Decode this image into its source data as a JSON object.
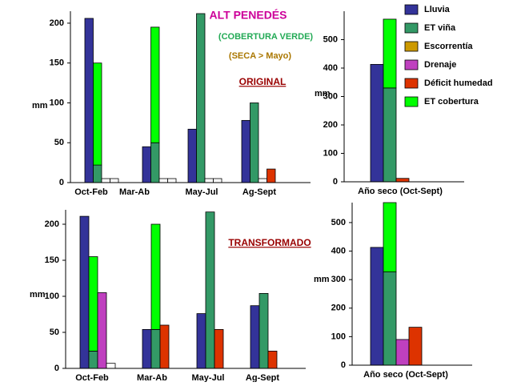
{
  "title": "ALT  PENEDÉS",
  "subtitle": "(COBERTURA VERDE)",
  "note": "(SECA > Mayo)",
  "chart_data": [
    {
      "type": "bar",
      "annotation": "ORIGINAL",
      "y_label": "mm",
      "categories": [
        "Oct-Feb",
        "Mar-Ab",
        "May-Jul",
        "Ag-Sept"
      ],
      "ylim": [
        0,
        215
      ],
      "yticks": [
        0,
        50,
        100,
        150,
        200
      ],
      "series": [
        {
          "name": "Lluvia",
          "color": "#333399",
          "values": [
            206,
            45,
            67,
            78
          ]
        },
        {
          "name": "ET viña",
          "color": "#339966",
          "values": [
            22,
            50,
            212,
            100
          ]
        },
        {
          "name": "ET cobertura",
          "color": "#00ff00",
          "stack": true,
          "values": [
            128,
            145,
            null,
            null
          ]
        },
        {
          "name": "Escorrentía",
          "color": "#ffffff",
          "values": [
            5,
            5,
            5,
            null
          ]
        },
        {
          "name": "Drenaje",
          "color": "#ffffff",
          "values": [
            5,
            5,
            5,
            5
          ]
        },
        {
          "name": "Déficit humedad",
          "color": "#dd3300",
          "values": [
            null,
            null,
            null,
            17
          ]
        }
      ]
    },
    {
      "type": "bar",
      "y_label": "mm",
      "legend": "outside-right",
      "categories": [
        "Año seco (Oct-Sept)"
      ],
      "ylim": [
        0,
        600
      ],
      "yticks": [
        0,
        100,
        200,
        300,
        400,
        500
      ],
      "series": [
        {
          "name": "Lluvia",
          "color": "#333399",
          "values": [
            413
          ]
        },
        {
          "name": "ET viña",
          "color": "#339966",
          "values": [
            330
          ]
        },
        {
          "name": "Escorrentía",
          "color": "#cc9900",
          "values": [
            null
          ]
        },
        {
          "name": "Drenaje",
          "color": "#bf40bf",
          "values": [
            null
          ]
        },
        {
          "name": "Déficit humedad",
          "color": "#dd3300",
          "values": [
            12
          ]
        },
        {
          "name": "ET cobertura",
          "color": "#00ff00",
          "stack_on": 1,
          "values": [
            242
          ]
        }
      ]
    },
    {
      "type": "bar",
      "annotation": "TRANSFORMADO",
      "y_label": "mm",
      "categories": [
        "Oct-Feb",
        "Mar-Ab",
        "May-Jul",
        "Ag-Sept"
      ],
      "ylim": [
        0,
        220
      ],
      "yticks": [
        0,
        50,
        100,
        150,
        200
      ],
      "series": [
        {
          "name": "Lluvia",
          "color": "#333399",
          "values": [
            211,
            54,
            76,
            87
          ]
        },
        {
          "name": "ET viña",
          "color": "#339966",
          "values": [
            24,
            54,
            217,
            104
          ]
        },
        {
          "name": "ET cobertura",
          "color": "#00ff00",
          "stack": true,
          "values": [
            131,
            146,
            null,
            null
          ]
        },
        {
          "name": "Drenaje",
          "color": "#bf40bf",
          "values": [
            105,
            null,
            null,
            null
          ]
        },
        {
          "name": "Escorrentía",
          "color": "#ffffff",
          "values": [
            7,
            null,
            null,
            null
          ]
        },
        {
          "name": "Déficit humedad",
          "color": "#dd3300",
          "values": [
            null,
            60,
            54,
            24
          ]
        }
      ]
    },
    {
      "type": "bar",
      "y_label": "mm",
      "categories": [
        "Año seco (Oct-Sept)"
      ],
      "ylim": [
        0,
        570
      ],
      "yticks": [
        0,
        100,
        200,
        300,
        400,
        500
      ],
      "series": [
        {
          "name": "Lluvia",
          "color": "#333399",
          "values": [
            413
          ]
        },
        {
          "name": "ET viña",
          "color": "#339966",
          "values": [
            327
          ]
        },
        {
          "name": "ET cobertura",
          "color": "#00ff00",
          "stack": true,
          "values": [
            243
          ]
        },
        {
          "name": "Drenaje",
          "color": "#bf40bf",
          "values": [
            90
          ]
        },
        {
          "name": "Déficit humedad",
          "color": "#dd3300",
          "values": [
            133
          ]
        }
      ]
    }
  ]
}
